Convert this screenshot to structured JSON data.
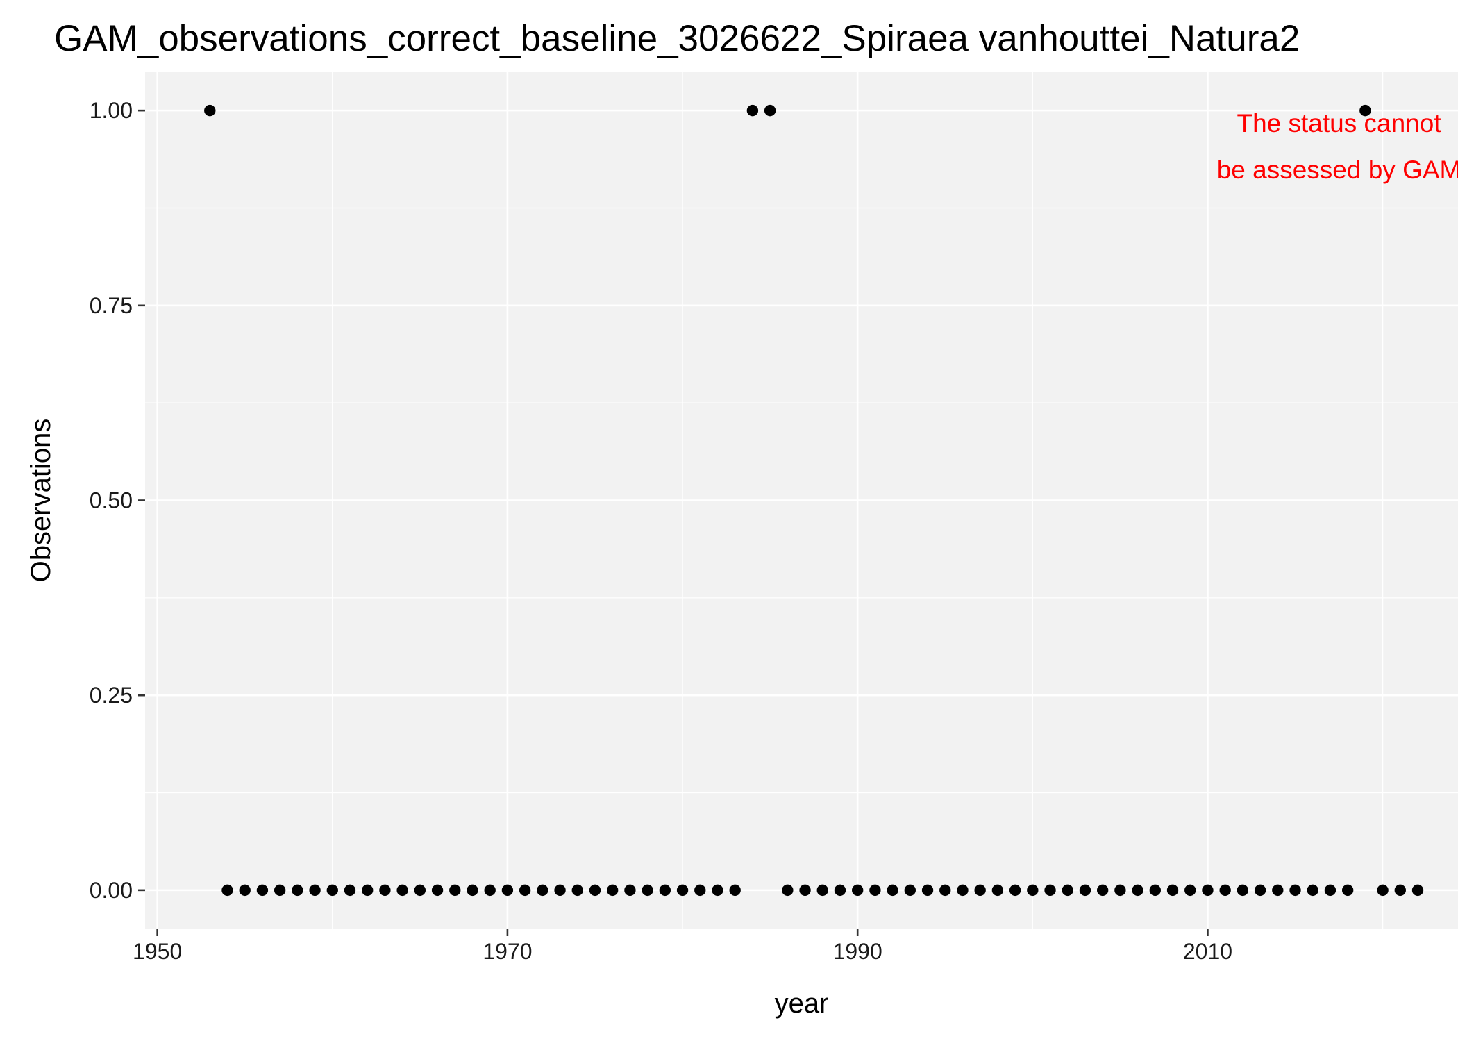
{
  "chart_data": {
    "type": "scatter",
    "title": "GAM_observations_correct_baseline_3026622_Spiraea vanhouttei_Natura2",
    "xlabel": "year",
    "ylabel": "Observations",
    "xlim": [
      1949.3,
      2024.3
    ],
    "ylim": [
      -0.05,
      1.05
    ],
    "grid": true,
    "x_major_ticks": [
      1950,
      1970,
      1990,
      2010
    ],
    "x_tick_labels": [
      "1950",
      "1970",
      "1990",
      "2010"
    ],
    "x_minor_ticks": [
      1960,
      1980,
      2000,
      2020
    ],
    "y_major_ticks": [
      0,
      0.25,
      0.5,
      0.75,
      1
    ],
    "y_tick_labels": [
      "0.00",
      "0.25",
      "0.50",
      "0.75",
      "1.00"
    ],
    "y_minor_ticks": [
      0.125,
      0.375,
      0.625,
      0.875
    ],
    "annotation": {
      "lines": [
        "The status cannot",
        "be assessed by GAM"
      ],
      "color": "#ff0000",
      "placement": "top-right"
    },
    "series": [
      {
        "name": "observations",
        "color": "#000000",
        "x": [
          1953,
          1954,
          1955,
          1956,
          1957,
          1958,
          1959,
          1960,
          1961,
          1962,
          1963,
          1964,
          1965,
          1966,
          1967,
          1968,
          1969,
          1970,
          1971,
          1972,
          1973,
          1974,
          1975,
          1976,
          1977,
          1978,
          1979,
          1980,
          1981,
          1982,
          1983,
          1984,
          1985,
          1986,
          1987,
          1988,
          1989,
          1990,
          1991,
          1992,
          1993,
          1994,
          1995,
          1996,
          1997,
          1998,
          1999,
          2000,
          2001,
          2002,
          2003,
          2004,
          2005,
          2006,
          2007,
          2008,
          2009,
          2010,
          2011,
          2012,
          2013,
          2014,
          2015,
          2016,
          2017,
          2018,
          2019,
          2020,
          2021,
          2022
        ],
        "y": [
          1,
          0,
          0,
          0,
          0,
          0,
          0,
          0,
          0,
          0,
          0,
          0,
          0,
          0,
          0,
          0,
          0,
          0,
          0,
          0,
          0,
          0,
          0,
          0,
          0,
          0,
          0,
          0,
          0,
          0,
          0,
          1,
          1,
          0,
          0,
          0,
          0,
          0,
          0,
          0,
          0,
          0,
          0,
          0,
          0,
          0,
          0,
          0,
          0,
          0,
          0,
          0,
          0,
          0,
          0,
          0,
          0,
          0,
          0,
          0,
          0,
          0,
          0,
          0,
          0,
          0,
          1,
          0,
          0,
          0
        ]
      }
    ]
  }
}
